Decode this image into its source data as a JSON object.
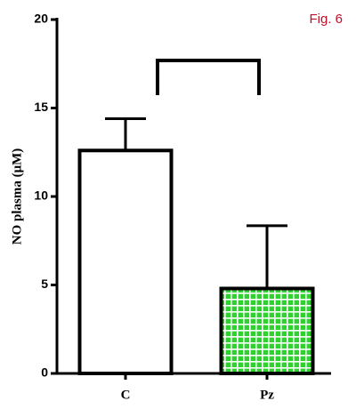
{
  "chart_data": {
    "type": "bar",
    "annotation": "Fig. 6",
    "y_label": "NO plasma (μM)",
    "categories": [
      "C",
      "Pz"
    ],
    "values": [
      12.6,
      4.8
    ],
    "errors": [
      1.8,
      3.55
    ],
    "colors": [
      "#ffffff",
      "#2fd12f"
    ],
    "ylim": [
      0,
      20
    ],
    "yticks": [
      0,
      5,
      10,
      15,
      20
    ]
  }
}
